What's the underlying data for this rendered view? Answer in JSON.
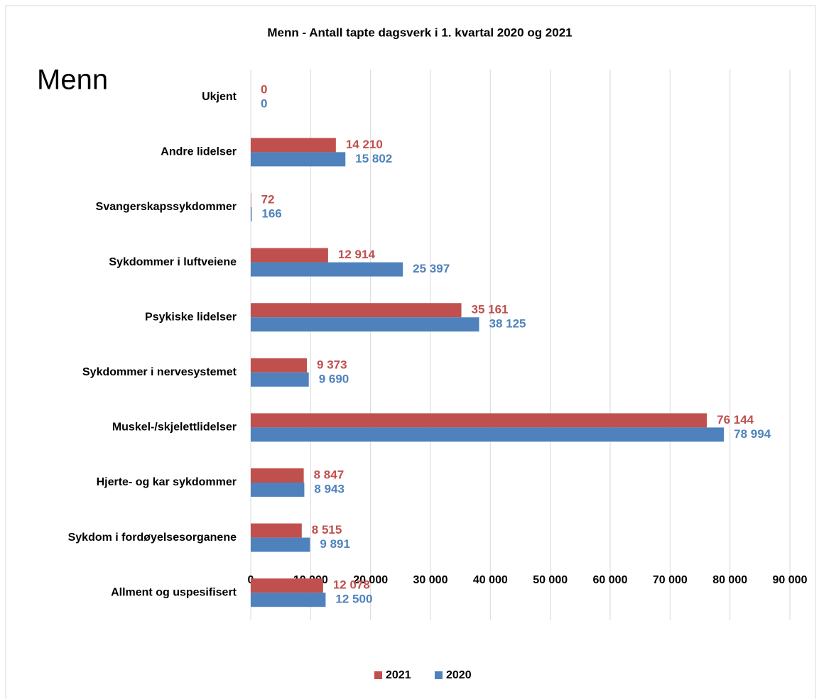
{
  "chart_data": {
    "type": "barh",
    "title": "Menn - Antall tapte dagsverk i 1. kvartal 2020 og 2021",
    "annotation": "Menn",
    "categories": [
      "Ukjent",
      "Andre lidelser",
      "Svangerskapssykdommer",
      "Sykdommer i luftveiene",
      "Psykiske lidelser",
      "Sykdommer i nervesystemet",
      "Muskel-/skjelettlidelser",
      "Hjerte- og kar sykdommer",
      "Sykdom i fordøyelsesorganene",
      "Allment og uspesifisert"
    ],
    "series": [
      {
        "name": "2021",
        "color": "#c0504d",
        "values": [
          0,
          14210,
          72,
          12914,
          35161,
          9373,
          76144,
          8847,
          8515,
          12078
        ],
        "value_labels": [
          "0",
          "14 210",
          "72",
          "12 914",
          "35 161",
          "9 373",
          "76 144",
          "8 847",
          "8 515",
          "12 078"
        ]
      },
      {
        "name": "2020",
        "color": "#4f81bd",
        "values": [
          0,
          15802,
          166,
          25397,
          38125,
          9690,
          78994,
          8943,
          9891,
          12500
        ],
        "value_labels": [
          "0",
          "15 802",
          "166",
          "25 397",
          "38 125",
          "9 690",
          "78 994",
          "8 943",
          "9 891",
          "12 500"
        ]
      }
    ],
    "xlim": [
      0,
      90000
    ],
    "xticks": [
      0,
      {
        "value": 10000,
        "label": "10 000"
      },
      {
        "value": 20000,
        "label": "20 000"
      },
      {
        "value": 30000,
        "label": "30 000"
      },
      {
        "value": 40000,
        "label": "40 000"
      },
      {
        "value": 50000,
        "label": "50 000"
      },
      {
        "value": 60000,
        "label": "60 000"
      },
      {
        "value": 70000,
        "label": "70 000"
      },
      {
        "value": 80000,
        "label": "80 000"
      },
      {
        "value": 90000,
        "label": "90 000"
      }
    ],
    "grid": true,
    "legend": "bottom"
  }
}
